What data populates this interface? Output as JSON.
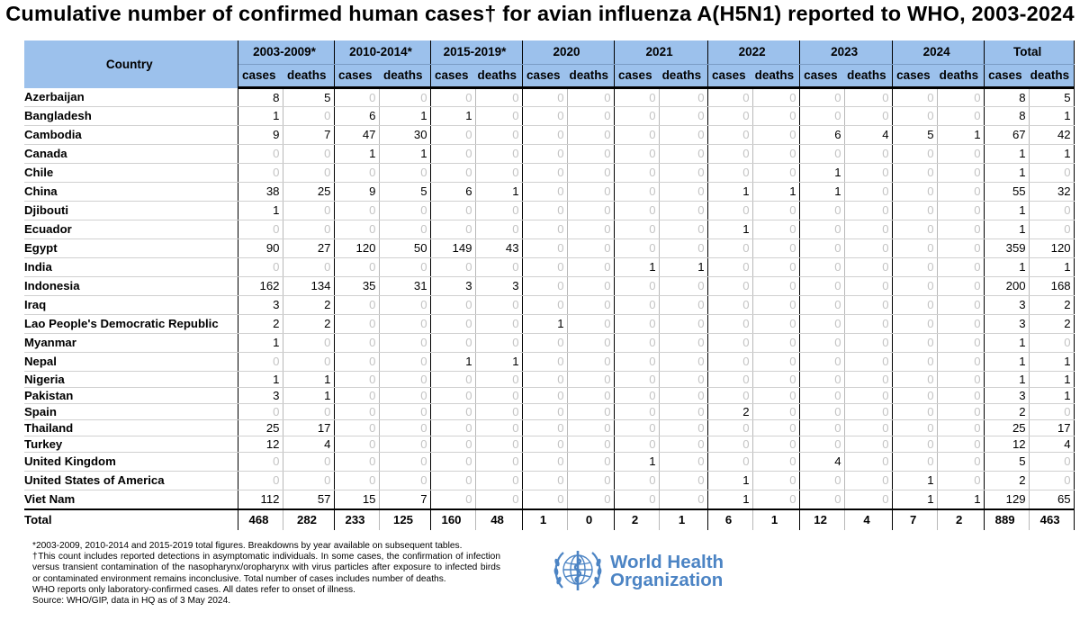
{
  "title": "Cumulative number of confirmed human cases† for avian influenza A(H5N1) reported to WHO, 2003-2024",
  "table": {
    "country_header": "Country",
    "periods": [
      "2003-2009*",
      "2010-2014*",
      "2015-2019*",
      "2020",
      "2021",
      "2022",
      "2023",
      "2024",
      "Total"
    ],
    "cases_label": "cases",
    "deaths_label": "deaths",
    "rows": [
      {
        "country": "Azerbaijan",
        "values": [
          8,
          5,
          0,
          0,
          0,
          0,
          0,
          0,
          0,
          0,
          0,
          0,
          0,
          0,
          0,
          0,
          8,
          5
        ]
      },
      {
        "country": "Bangladesh",
        "values": [
          1,
          0,
          6,
          1,
          1,
          0,
          0,
          0,
          0,
          0,
          0,
          0,
          0,
          0,
          0,
          0,
          8,
          1
        ]
      },
      {
        "country": "Cambodia",
        "values": [
          9,
          7,
          47,
          30,
          0,
          0,
          0,
          0,
          0,
          0,
          0,
          0,
          6,
          4,
          5,
          1,
          67,
          42
        ]
      },
      {
        "country": "Canada",
        "values": [
          0,
          0,
          1,
          1,
          0,
          0,
          0,
          0,
          0,
          0,
          0,
          0,
          0,
          0,
          0,
          0,
          1,
          1
        ]
      },
      {
        "country": "Chile",
        "values": [
          0,
          0,
          0,
          0,
          0,
          0,
          0,
          0,
          0,
          0,
          0,
          0,
          1,
          0,
          0,
          0,
          1,
          0
        ]
      },
      {
        "country": "China",
        "values": [
          38,
          25,
          9,
          5,
          6,
          1,
          0,
          0,
          0,
          0,
          1,
          1,
          1,
          0,
          0,
          0,
          55,
          32
        ]
      },
      {
        "country": "Djibouti",
        "values": [
          1,
          0,
          0,
          0,
          0,
          0,
          0,
          0,
          0,
          0,
          0,
          0,
          0,
          0,
          0,
          0,
          1,
          0
        ]
      },
      {
        "country": "Ecuador",
        "values": [
          0,
          0,
          0,
          0,
          0,
          0,
          0,
          0,
          0,
          0,
          1,
          0,
          0,
          0,
          0,
          0,
          1,
          0
        ]
      },
      {
        "country": "Egypt",
        "values": [
          90,
          27,
          120,
          50,
          149,
          43,
          0,
          0,
          0,
          0,
          0,
          0,
          0,
          0,
          0,
          0,
          359,
          120
        ]
      },
      {
        "country": "India",
        "values": [
          0,
          0,
          0,
          0,
          0,
          0,
          0,
          0,
          1,
          1,
          0,
          0,
          0,
          0,
          0,
          0,
          1,
          1
        ]
      },
      {
        "country": "Indonesia",
        "values": [
          162,
          134,
          35,
          31,
          3,
          3,
          0,
          0,
          0,
          0,
          0,
          0,
          0,
          0,
          0,
          0,
          200,
          168
        ]
      },
      {
        "country": "Iraq",
        "values": [
          3,
          2,
          0,
          0,
          0,
          0,
          0,
          0,
          0,
          0,
          0,
          0,
          0,
          0,
          0,
          0,
          3,
          2
        ]
      },
      {
        "country": "Lao People's Democratic Republic",
        "values": [
          2,
          2,
          0,
          0,
          0,
          0,
          1,
          0,
          0,
          0,
          0,
          0,
          0,
          0,
          0,
          0,
          3,
          2
        ]
      },
      {
        "country": "Myanmar",
        "values": [
          1,
          0,
          0,
          0,
          0,
          0,
          0,
          0,
          0,
          0,
          0,
          0,
          0,
          0,
          0,
          0,
          1,
          0
        ]
      },
      {
        "country": "Nepal",
        "values": [
          0,
          0,
          0,
          0,
          1,
          1,
          0,
          0,
          0,
          0,
          0,
          0,
          0,
          0,
          0,
          0,
          1,
          1
        ]
      },
      {
        "country": "Nigeria",
        "values": [
          1,
          1,
          0,
          0,
          0,
          0,
          0,
          0,
          0,
          0,
          0,
          0,
          0,
          0,
          0,
          0,
          1,
          1
        ]
      },
      {
        "country": "Pakistan",
        "values": [
          3,
          1,
          0,
          0,
          0,
          0,
          0,
          0,
          0,
          0,
          0,
          0,
          0,
          0,
          0,
          0,
          3,
          1
        ]
      },
      {
        "country": "Spain",
        "values": [
          0,
          0,
          0,
          0,
          0,
          0,
          0,
          0,
          0,
          0,
          2,
          0,
          0,
          0,
          0,
          0,
          2,
          0
        ]
      },
      {
        "country": "Thailand",
        "values": [
          25,
          17,
          0,
          0,
          0,
          0,
          0,
          0,
          0,
          0,
          0,
          0,
          0,
          0,
          0,
          0,
          25,
          17
        ]
      },
      {
        "country": "Turkey",
        "values": [
          12,
          4,
          0,
          0,
          0,
          0,
          0,
          0,
          0,
          0,
          0,
          0,
          0,
          0,
          0,
          0,
          12,
          4
        ]
      },
      {
        "country": "United Kingdom",
        "values": [
          0,
          0,
          0,
          0,
          0,
          0,
          0,
          0,
          1,
          0,
          0,
          0,
          4,
          0,
          0,
          0,
          5,
          0
        ]
      },
      {
        "country": "United States of America",
        "values": [
          0,
          0,
          0,
          0,
          0,
          0,
          0,
          0,
          0,
          0,
          1,
          0,
          0,
          0,
          1,
          0,
          2,
          0
        ]
      },
      {
        "country": "Viet Nam",
        "values": [
          112,
          57,
          15,
          7,
          0,
          0,
          0,
          0,
          0,
          0,
          1,
          0,
          0,
          0,
          1,
          1,
          129,
          65
        ]
      }
    ],
    "total": {
      "label": "Total",
      "values": [
        468,
        282,
        233,
        125,
        160,
        48,
        1,
        0,
        2,
        1,
        6,
        1,
        12,
        4,
        7,
        2,
        889,
        463
      ]
    }
  },
  "notes": [
    "*2003-2009, 2010-2014 and 2015-2019 total figures. Breakdowns by year available on subsequent tables.",
    "†This count includes reported detections in asymptomatic individuals. In some cases, the confirmation of infection versus transient contamination of the nasopharynx/oropharynx with virus particles after exposure to infected birds or contaminated environment remains inconclusive. Total number of cases includes number of deaths.",
    "WHO reports only laboratory-confirmed cases. All dates refer to onset of illness.",
    "Source: WHO/GIP, data in HQ as of 3 May 2024."
  ],
  "logo": {
    "line1": "World Health",
    "line2": "Organization",
    "icon": "who-emblem-icon",
    "color": "#4c84c4"
  },
  "colors": {
    "header_bg": "#9cc1ec",
    "zero_text": "#c4c4c4"
  }
}
